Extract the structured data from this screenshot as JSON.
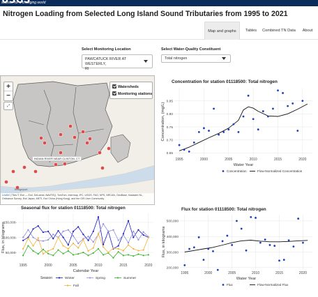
{
  "banner": {
    "brand_name": "USGS",
    "tagline": "science for a changing world"
  },
  "page_title": "Nitrogen Loading from Selected Long Island Sound Tributaries from 1995 to 2021",
  "nav": {
    "tabs": [
      {
        "label": "Map and graphs",
        "active": true
      },
      {
        "label": "Tables",
        "active": false
      },
      {
        "label": "Combined TN Data",
        "active": false
      },
      {
        "label": "About",
        "active": false
      }
    ]
  },
  "controls": {
    "location_label": "Select Monitoring Location",
    "location_value_line1": "PAWCATUCK RIVER AT WESTERLY,",
    "location_value_line2": "RI",
    "constituent_label": "Select Water-Quality Constituent",
    "constituent_value": "Total nitrogen"
  },
  "map": {
    "zoom_in": "+",
    "zoom_out": "−",
    "fullscreen": "⤢",
    "layers": [
      {
        "label": "Watersheds",
        "checked": true
      },
      {
        "label": "Monitoring stations",
        "checked": true
      }
    ],
    "tooltip_label": "INDIAN RIVER NEAR CLINTON, CT",
    "attribution_link": "Leaflet",
    "attribution_text": " | Tiles © Esri — Esri, DeLorme, NAVTEQ, TomTom, Intermap, iPC, USGS, FAO, NPS, NRCAN, GeoBase, Kadaster NL, Ordnance Survey, Esri Japan, METI, Esri China (Hong Kong), and the GIS User Community",
    "place_labels": [
      "Bridgeport",
      "Long Island"
    ],
    "colors": {
      "water": "#ccdcea",
      "land": "#f1efe8",
      "watershed": "#b8b8b8",
      "station": "#e24a4a"
    }
  },
  "chart_data": [
    {
      "type": "scatter",
      "title": "Concentration for station 01118500: Total nitrogen",
      "xlabel": "Water Year",
      "ylabel": "Concentration, (mg/L)",
      "xlim": [
        1994,
        2022
      ],
      "ylim": [
        0.64,
        0.9
      ],
      "xticks": [
        1995,
        2000,
        2005,
        2010,
        2015,
        2020
      ],
      "yticks": [
        0.65,
        0.7,
        0.75,
        0.8,
        0.85
      ],
      "grid": true,
      "legend": [
        "Concentration",
        "Flow-Normalized Concentration"
      ],
      "legend_position": "bottom",
      "colors": {
        "points": "#1e3fbd",
        "trend": "#111111"
      },
      "points": {
        "x": [
          1995,
          1996,
          1997,
          1998,
          1999,
          2000,
          2001,
          2002,
          2003,
          2004,
          2005,
          2006,
          2007,
          2008,
          2009,
          2010,
          2011,
          2012,
          2013,
          2014,
          2015,
          2016,
          2017,
          2018,
          2019,
          2020
        ],
        "y": [
          0.68,
          0.662,
          0.655,
          0.69,
          0.73,
          0.745,
          0.735,
          0.82,
          0.72,
          0.73,
          0.74,
          0.76,
          0.73,
          0.79,
          0.87,
          0.78,
          0.74,
          0.81,
          0.79,
          0.82,
          0.89,
          0.88,
          0.83,
          0.84,
          0.735,
          0.85
        ]
      },
      "trend": {
        "x": [
          1995,
          1997,
          1999,
          2001,
          2003,
          2005,
          2007,
          2008,
          2009,
          2010,
          2011,
          2013,
          2015,
          2017,
          2019,
          2021
        ],
        "y": [
          0.658,
          0.672,
          0.69,
          0.708,
          0.725,
          0.745,
          0.775,
          0.815,
          0.827,
          0.822,
          0.81,
          0.792,
          0.79,
          0.8,
          0.818,
          0.838
        ]
      }
    },
    {
      "type": "line",
      "title": "Seasonal flux for station 01118500: Total nitrogen",
      "xlabel": "Calendar Year",
      "ylabel": "Flux, in kilograms",
      "xlim": [
        1994,
        2021
      ],
      "ylim": [
        20000,
        180000
      ],
      "xticks": [
        1995,
        2000,
        2005,
        2010,
        2015,
        2020
      ],
      "yticks": [
        50000,
        100000,
        150000
      ],
      "ytick_labels": [
        "50,000-",
        "100,000-",
        "150,000-"
      ],
      "grid": true,
      "legend_title": "Season",
      "legend_position": "bottom",
      "x": [
        1995,
        1996,
        1997,
        1998,
        1999,
        2000,
        2001,
        2002,
        2003,
        2004,
        2005,
        2006,
        2007,
        2008,
        2009,
        2010,
        2011,
        2012,
        2013,
        2014,
        2015,
        2016,
        2017,
        2018,
        2019,
        2020
      ],
      "series": [
        {
          "name": "Winter",
          "color": "#1c1cc4",
          "values": [
            90000,
            100000,
            128000,
            138000,
            117000,
            120000,
            96000,
            122000,
            100000,
            75000,
            120000,
            135000,
            110000,
            90000,
            120000,
            168000,
            76000,
            120000,
            62000,
            72000,
            112000,
            155000,
            100000,
            125000,
            108000,
            100000
          ]
        },
        {
          "name": "Spring",
          "color": "#8f8fe0",
          "values": [
            100000,
            125000,
            100000,
            90000,
            88000,
            92000,
            110000,
            100000,
            120000,
            125000,
            105000,
            80000,
            95000,
            103000,
            85000,
            110000,
            145000,
            120000,
            125000,
            90000,
            108000,
            82000,
            120000,
            92000,
            118000,
            102000
          ]
        },
        {
          "name": "Summer",
          "color": "#3eb52e",
          "values": [
            40000,
            72000,
            55000,
            45000,
            60000,
            46000,
            40000,
            58000,
            46000,
            55000,
            42000,
            45000,
            50000,
            40000,
            48000,
            62000,
            42000,
            48000,
            32000,
            52000,
            40000,
            42000,
            38000,
            44000,
            40000,
            42000
          ]
        },
        {
          "name": "Fall",
          "color": "#f2b33a",
          "values": [
            62000,
            97000,
            72000,
            98000,
            45000,
            55000,
            62000,
            100000,
            72000,
            62000,
            80000,
            65000,
            92000,
            55000,
            65000,
            112000,
            68000,
            50000,
            64000,
            62000,
            56000,
            75000,
            62000,
            56000,
            58000,
            100000
          ]
        }
      ]
    },
    {
      "type": "scatter",
      "title": "Flux for station 01118500: Total nitrogen",
      "xlabel": "Water Year",
      "ylabel": "Flux, in kilograms",
      "xlim": [
        1994,
        2022
      ],
      "ylim": [
        190000,
        540000
      ],
      "xticks": [
        1995,
        2000,
        2005,
        2010,
        2015,
        2020
      ],
      "yticks": [
        200000,
        300000,
        400000,
        500000
      ],
      "ytick_labels": [
        "200,000",
        "300,000",
        "400,000",
        "500,000"
      ],
      "grid": true,
      "legend": [
        "Flux",
        "Flow-Normalized Flux"
      ],
      "legend_position": "bottom",
      "colors": {
        "points": "#1e3fbd",
        "trend": "#111111"
      },
      "points": {
        "x": [
          1995,
          1996,
          1997,
          1998,
          1999,
          2000,
          2001,
          2002,
          2003,
          2004,
          2005,
          2006,
          2007,
          2008,
          2009,
          2010,
          2011,
          2012,
          2013,
          2014,
          2015,
          2016,
          2017,
          2018,
          2019,
          2020
        ],
        "y": [
          215000,
          320000,
          330000,
          395000,
          250000,
          320000,
          305000,
          185000,
          370000,
          405000,
          345000,
          500000,
          450000,
          310000,
          525000,
          520000,
          360000,
          380000,
          345000,
          340000,
          245000,
          250000,
          375000,
          335000,
          515000,
          360000
        ]
      },
      "trend": {
        "x": [
          1995,
          1997,
          1999,
          2001,
          2003,
          2005,
          2007,
          2009,
          2011,
          2013,
          2015,
          2017,
          2019,
          2021
        ],
        "y": [
          300000,
          310000,
          320000,
          330000,
          345000,
          360000,
          372000,
          376000,
          370000,
          366000,
          366000,
          368000,
          372000,
          375000
        ]
      }
    }
  ]
}
